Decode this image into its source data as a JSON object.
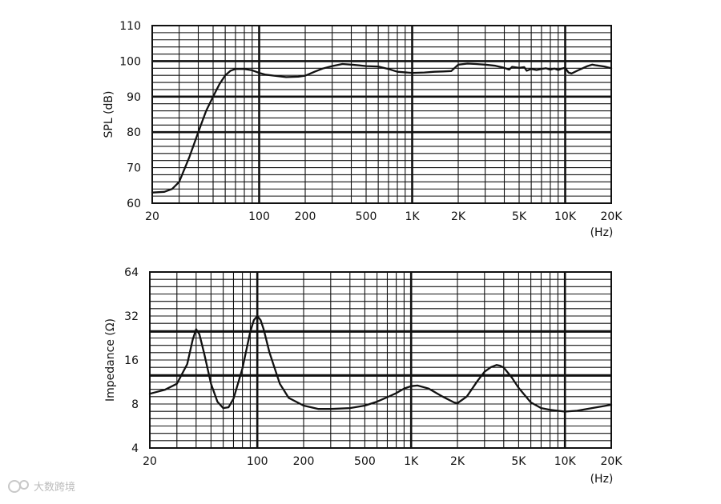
{
  "chart_data": [
    {
      "type": "line",
      "xlabel": "",
      "ylabel": "SPL (dB)",
      "x_unit": "(Hz)",
      "xscale": "log",
      "xlim": [
        20,
        20000
      ],
      "ylim": [
        60,
        110
      ],
      "grid": true,
      "x_ticks": [
        {
          "value": 20,
          "label": "20"
        },
        {
          "value": 100,
          "label": "100"
        },
        {
          "value": 200,
          "label": "200"
        },
        {
          "value": 500,
          "label": "500"
        },
        {
          "value": 1000,
          "label": "1K"
        },
        {
          "value": 2000,
          "label": "2K"
        },
        {
          "value": 5000,
          "label": "5K"
        },
        {
          "value": 10000,
          "label": "10K"
        },
        {
          "value": 20000,
          "label": "20K"
        }
      ],
      "y_ticks": [
        {
          "value": 60,
          "label": "60"
        },
        {
          "value": 70,
          "label": "70"
        },
        {
          "value": 80,
          "label": "80"
        },
        {
          "value": 90,
          "label": "90"
        },
        {
          "value": 100,
          "label": "100"
        },
        {
          "value": 110,
          "label": "110"
        }
      ],
      "series": [
        {
          "x": [
            20,
            24,
            27,
            30,
            35,
            40,
            45,
            50,
            55,
            60,
            65,
            70,
            80,
            90,
            100,
            110,
            130,
            150,
            180,
            200,
            230,
            260,
            300,
            350,
            400,
            450,
            500,
            600,
            700,
            800,
            1000,
            1200,
            1400,
            1600,
            1800,
            2000,
            2300,
            2600,
            3000,
            3500,
            4000,
            4300,
            4500,
            5000,
            5400,
            5600,
            6000,
            6500,
            7000,
            7500,
            8000,
            8500,
            9000,
            9500,
            10000,
            10500,
            11000,
            12000,
            13000,
            14000,
            15000,
            16000,
            18000,
            20000
          ],
          "y": [
            63,
            63.2,
            64,
            66,
            73,
            80,
            86,
            90,
            93.5,
            96,
            97.3,
            97.8,
            97.8,
            97.4,
            96.7,
            96.2,
            95.8,
            95.5,
            95.6,
            95.9,
            97,
            97.9,
            98.6,
            99.2,
            99,
            98.8,
            98.6,
            98.5,
            97.8,
            97,
            96.7,
            96.8,
            97,
            97.1,
            97.2,
            99,
            99.3,
            99.2,
            99,
            98.7,
            98.1,
            97.6,
            98.4,
            98.1,
            98.3,
            97.3,
            97.8,
            97.5,
            97.8,
            98,
            97.6,
            97.9,
            97.5,
            97.9,
            98.1,
            96.8,
            96.5,
            97.3,
            98,
            98.6,
            99,
            98.8,
            98.5,
            98
          ]
        }
      ]
    },
    {
      "type": "line",
      "xlabel": "",
      "ylabel": "Impedance (Ω)",
      "x_unit": "(Hz)",
      "xscale": "log",
      "yscale": "log",
      "xlim": [
        20,
        20000
      ],
      "ylim": [
        4,
        64
      ],
      "grid": true,
      "x_ticks": [
        {
          "value": 20,
          "label": "20"
        },
        {
          "value": 100,
          "label": "100"
        },
        {
          "value": 200,
          "label": "200"
        },
        {
          "value": 500,
          "label": "500"
        },
        {
          "value": 1000,
          "label": "1K"
        },
        {
          "value": 2000,
          "label": "2K"
        },
        {
          "value": 5000,
          "label": "5K"
        },
        {
          "value": 10000,
          "label": "10K"
        },
        {
          "value": 20000,
          "label": "20K"
        }
      ],
      "y_ticks": [
        {
          "value": 4,
          "label": "4"
        },
        {
          "value": 8,
          "label": "8"
        },
        {
          "value": 16,
          "label": "16"
        },
        {
          "value": 32,
          "label": "32"
        },
        {
          "value": 64,
          "label": "64"
        }
      ],
      "series": [
        {
          "x": [
            20,
            25,
            30,
            35,
            38,
            40,
            42,
            45,
            50,
            55,
            60,
            65,
            70,
            80,
            90,
            95,
            100,
            105,
            110,
            120,
            140,
            160,
            200,
            250,
            300,
            400,
            500,
            600,
            700,
            800,
            900,
            1000,
            1100,
            1300,
            1600,
            1900,
            2000,
            2300,
            2700,
            3000,
            3300,
            3600,
            3800,
            4000,
            4500,
            5000,
            6000,
            7000,
            8000,
            10000,
            12000,
            15000,
            20000
          ],
          "y": [
            9.4,
            10,
            11,
            15,
            22,
            26,
            24,
            18,
            11,
            8.3,
            7.5,
            7.6,
            8.7,
            14,
            25,
            30,
            32,
            30,
            26,
            18,
            11,
            8.8,
            7.8,
            7.4,
            7.4,
            7.5,
            7.8,
            8.3,
            8.9,
            9.5,
            10.2,
            10.6,
            10.7,
            10.2,
            9,
            8.2,
            8.1,
            9,
            11.5,
            13.3,
            14.3,
            14.8,
            14.6,
            14.2,
            12.2,
            10.3,
            8.2,
            7.5,
            7.3,
            7.1,
            7.2,
            7.5,
            7.9
          ]
        }
      ]
    }
  ],
  "watermark": "大数跨境"
}
